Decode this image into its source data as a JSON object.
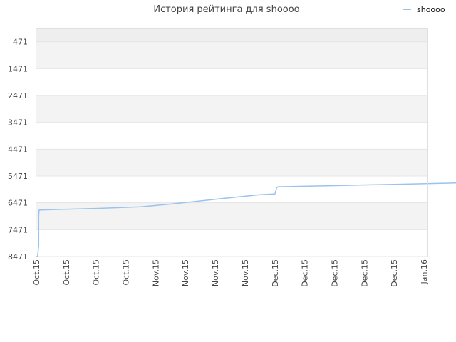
{
  "chart_data": {
    "type": "line",
    "title": "История рейтинга для shoooo",
    "y_ticks": [
      "471",
      "1471",
      "2471",
      "3471",
      "4471",
      "5471",
      "6471",
      "7471",
      "8471"
    ],
    "x_ticks": [
      "Oct.15",
      "Oct.15",
      "Oct.15",
      "Oct.15",
      "Nov.15",
      "Nov.15",
      "Nov.15",
      "Nov.15",
      "Dec.15",
      "Dec.15",
      "Dec.15",
      "Dec.15",
      "Dec.15",
      "Jan.16"
    ],
    "ylim": [
      8471,
      0
    ],
    "y_inverted": true,
    "grid": true,
    "legend_position": "top-right",
    "series": [
      {
        "name": "shoooo",
        "color": "#99c3ee",
        "x": [
          0,
          0.04,
          0.08,
          0.08,
          0.09,
          0.1,
          0.6,
          2,
          3.5,
          4.5,
          5.5,
          6.5,
          7.5,
          8.0,
          8.06,
          8.1,
          10,
          12,
          14,
          16,
          18,
          20,
          22,
          24,
          25,
          26,
          26.2
        ],
        "y": [
          8471,
          8471,
          8050,
          7000,
          6750,
          6740,
          6720,
          6680,
          6620,
          6520,
          6400,
          6280,
          6170,
          6140,
          5910,
          5870,
          5830,
          5780,
          5730,
          5690,
          5650,
          5610,
          5560,
          5490,
          5460,
          5430,
          5420
        ]
      }
    ]
  }
}
